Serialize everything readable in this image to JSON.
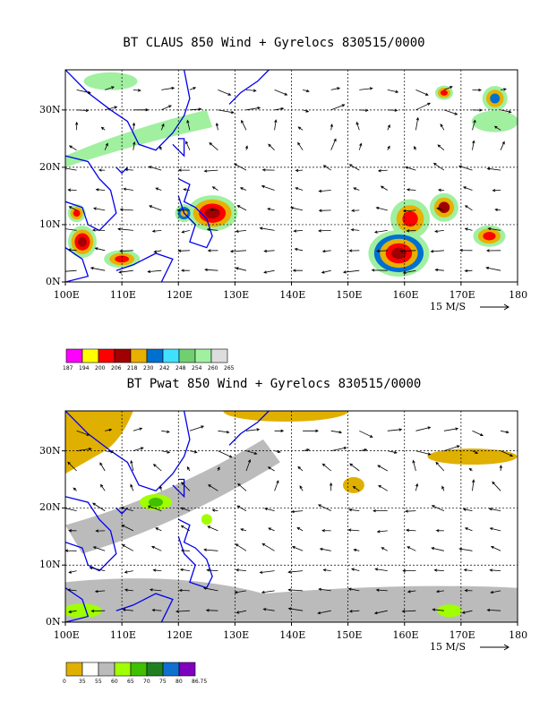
{
  "panels": [
    {
      "title": "BT CLAUS 850 Wind + Gyrelocs 830515/0000",
      "x_ticks": [
        "100E",
        "110E",
        "120E",
        "130E",
        "140E",
        "150E",
        "160E",
        "170E",
        "180"
      ],
      "y_ticks": [
        "0N",
        "10N",
        "20N",
        "30N"
      ],
      "vector_ref": "15 M/S",
      "colorbar": {
        "labels": [
          "187",
          "194",
          "200",
          "206",
          "218",
          "230",
          "242",
          "248",
          "254",
          "260",
          "265"
        ],
        "colors": [
          "#ff00ff",
          "#ffff00",
          "#ff0000",
          "#a00000",
          "#e8b000",
          "#0070d0",
          "#40e0ff",
          "#70d070",
          "#a0f0a0",
          "#dddddd"
        ]
      }
    },
    {
      "title": "BT Pwat 850 Wind + Gyrelocs 830515/0000",
      "x_ticks": [
        "100E",
        "110E",
        "120E",
        "130E",
        "140E",
        "150E",
        "160E",
        "170E",
        "180"
      ],
      "y_ticks": [
        "0N",
        "10N",
        "20N",
        "30N"
      ],
      "vector_ref": "15 M/S",
      "colorbar": {
        "labels": [
          "0",
          "35",
          "55",
          "60",
          "65",
          "70",
          "75",
          "80",
          "86.75"
        ],
        "colors": [
          "#e0b000",
          "#ffffff",
          "#bbbbbb",
          "#a0ff00",
          "#40c000",
          "#208020",
          "#1070d0",
          "#8000c0"
        ]
      }
    }
  ],
  "chart_data": [
    {
      "type": "heatmap",
      "title": "BT CLAUS 850 Wind + Gyrelocs 830515/0000",
      "x_range": [
        100,
        180
      ],
      "y_range": [
        0,
        37
      ],
      "x_ticks": [
        "100E",
        "110E",
        "120E",
        "130E",
        "140E",
        "150E",
        "160E",
        "170E",
        "180"
      ],
      "y_ticks": [
        "0N",
        "10N",
        "20N",
        "30N"
      ],
      "grid": true,
      "colorbar_levels": [
        187,
        194,
        200,
        206,
        218,
        230,
        242,
        248,
        254,
        260,
        265
      ],
      "vector_reference": "15 M/S"
    },
    {
      "type": "heatmap",
      "title": "BT Pwat 850 Wind + Gyrelocs 830515/0000",
      "x_range": [
        100,
        180
      ],
      "y_range": [
        0,
        37
      ],
      "x_ticks": [
        "100E",
        "110E",
        "120E",
        "130E",
        "140E",
        "150E",
        "160E",
        "170E",
        "180"
      ],
      "y_ticks": [
        "0N",
        "10N",
        "20N",
        "30N"
      ],
      "grid": true,
      "colorbar_levels": [
        0,
        35,
        55,
        60,
        65,
        70,
        75,
        80,
        86.75
      ],
      "vector_reference": "15 M/S"
    }
  ]
}
